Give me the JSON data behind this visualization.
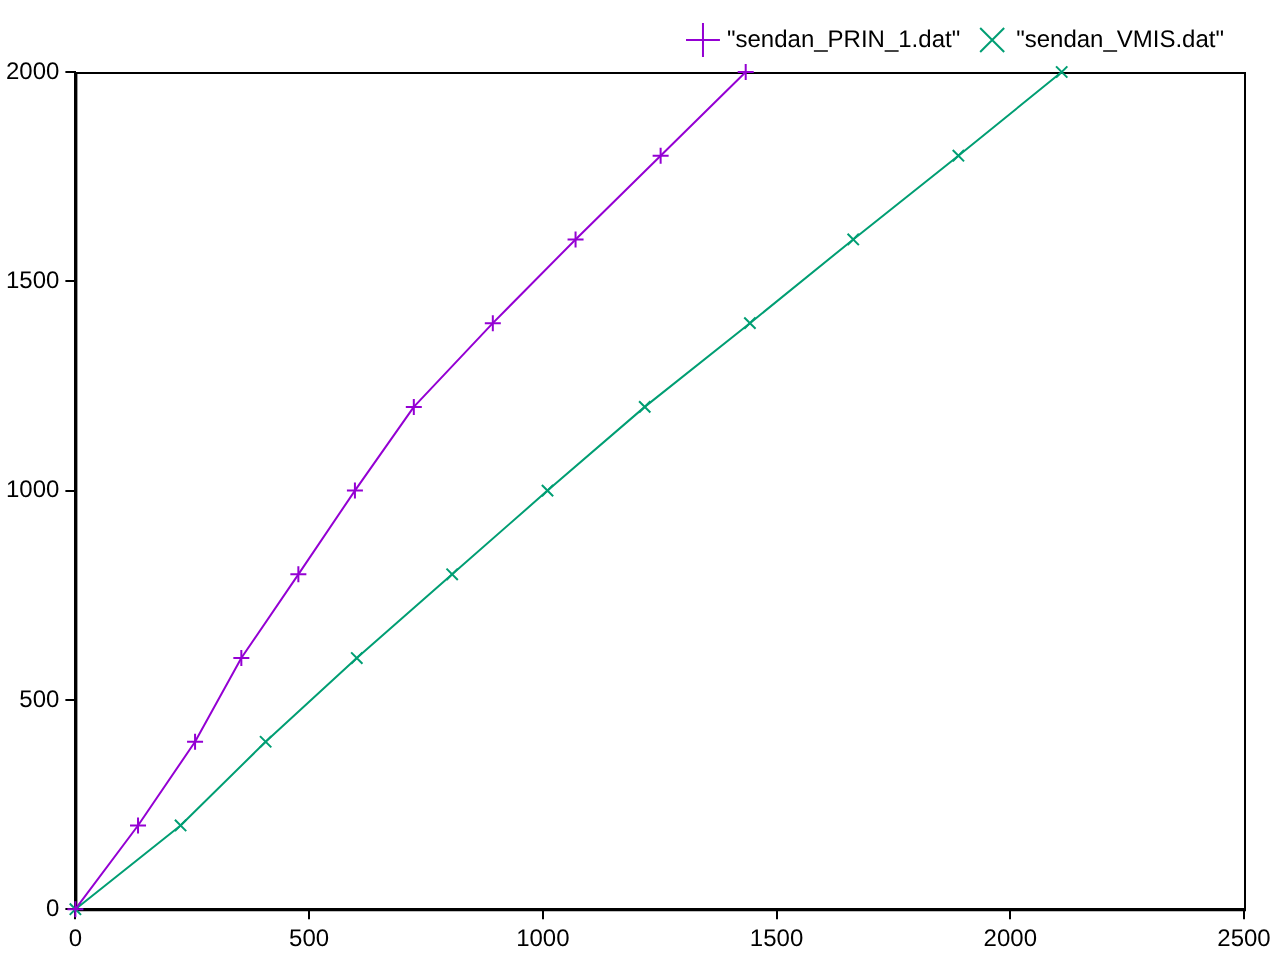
{
  "chart_data": {
    "type": "line",
    "xlim": [
      0,
      2500
    ],
    "xticks": [
      0,
      500,
      1000,
      1500,
      2000,
      2500
    ],
    "ylim": [
      0,
      2000
    ],
    "yticks": [
      0,
      500,
      1000,
      1500,
      2000
    ],
    "grid": false,
    "legend": "top right",
    "series": [
      {
        "name": "\"sendan_PRIN_1.dat\"",
        "color": "#9400d3",
        "marker": "cross",
        "x": [
          0,
          134,
          256,
          355,
          477,
          598,
          724,
          893,
          1070,
          1252,
          1434
        ],
        "values": [
          0,
          200,
          400,
          600,
          800,
          1000,
          1200,
          1400,
          1600,
          1800,
          2000
        ]
      },
      {
        "name": "\"sendan_VMIS.dat\"",
        "color": "#009e73",
        "marker": "x",
        "x": [
          0,
          225,
          407,
          602,
          806,
          1010,
          1218,
          1443,
          1664,
          1889,
          2110
        ],
        "values": [
          0,
          200,
          400,
          600,
          800,
          1000,
          1200,
          1400,
          1600,
          1800,
          2000
        ]
      }
    ]
  }
}
